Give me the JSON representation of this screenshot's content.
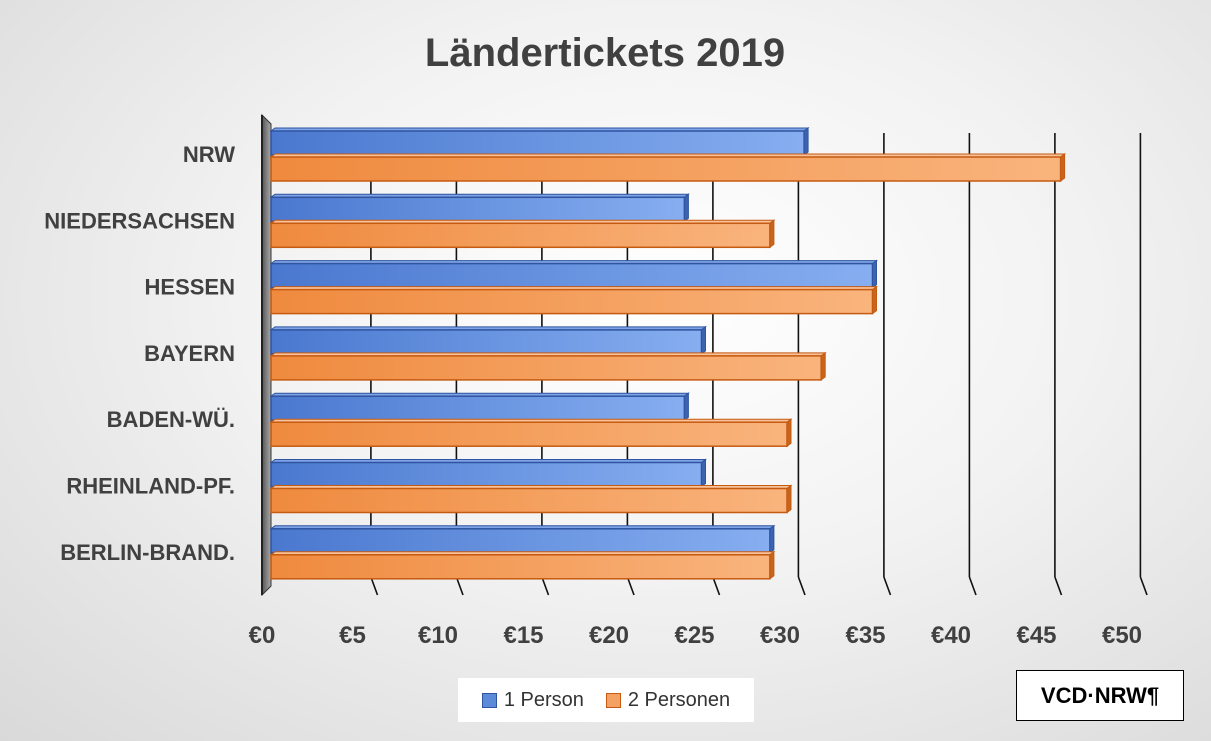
{
  "chart_data": {
    "type": "bar",
    "orientation": "horizontal",
    "title": "Ländertickets 2019",
    "categories": [
      "NRW",
      "NIEDERSACHSEN",
      "HESSEN",
      "BAYERN",
      "BADEN-WÜ.",
      "RHEINLAND-PF.",
      "BERLIN-BRAND."
    ],
    "series": [
      {
        "name": "1 Person",
        "color": "#5b8bd8",
        "values": [
          31,
          24,
          35,
          25,
          24,
          25,
          29
        ]
      },
      {
        "name": "2 Personen",
        "color": "#f4a263",
        "values": [
          46,
          29,
          35,
          32,
          30,
          30,
          29
        ]
      }
    ],
    "x_ticks": [
      "€0",
      "€5",
      "€10",
      "€15",
      "€20",
      "€25",
      "€30",
      "€35",
      "€40",
      "€45",
      "€50"
    ],
    "xlim": [
      0,
      50
    ],
    "xlabel": "",
    "ylabel": "",
    "legend_position": "bottom",
    "grid": true
  },
  "credit": "VCD·NRW¶"
}
